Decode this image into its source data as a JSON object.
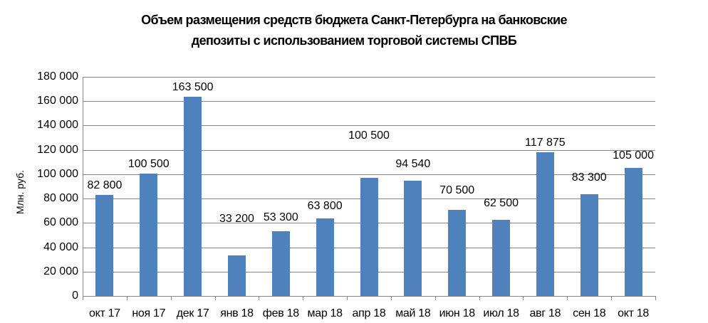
{
  "chart_data": {
    "type": "bar",
    "title": "Объем размещения средств бюджета Санкт-Петербурга на банковские депозиты с использованием торговой системы СПВБ",
    "title_lines": [
      "Объем размещения средств бюджета Санкт-Петербурга на банковские",
      "депозиты с использованием торговой системы СПВБ"
    ],
    "xlabel": "",
    "ylabel": "Млн. руб.",
    "ylim": [
      0,
      180000
    ],
    "yticks": [
      "0",
      "20 000",
      "40 000",
      "60 000",
      "80 000",
      "100 000",
      "120 000",
      "140 000",
      "160 000",
      "180 000"
    ],
    "grid": true,
    "legend": "none",
    "categories": [
      "окт 17",
      "ноя 17",
      "дек 17",
      "янв 18",
      "фев 18",
      "мар 18",
      "апр 18",
      "май 18",
      "июн 18",
      "июл 18",
      "авг 18",
      "сен 18",
      "окт 18"
    ],
    "values": [
      82800,
      100500,
      163500,
      33200,
      53300,
      63800,
      100500,
      94540,
      70500,
      62500,
      117875,
      83300,
      105000
    ],
    "data_labels": [
      "82 800",
      "100 500",
      "163 500",
      "33 200",
      "53 300",
      "63 800",
      "100 500",
      "94 540",
      "70 500",
      "62 500",
      "117 875",
      "83 300",
      "105 000"
    ],
    "bar_color": "#4F81BD",
    "grid_color": "#868686"
  }
}
